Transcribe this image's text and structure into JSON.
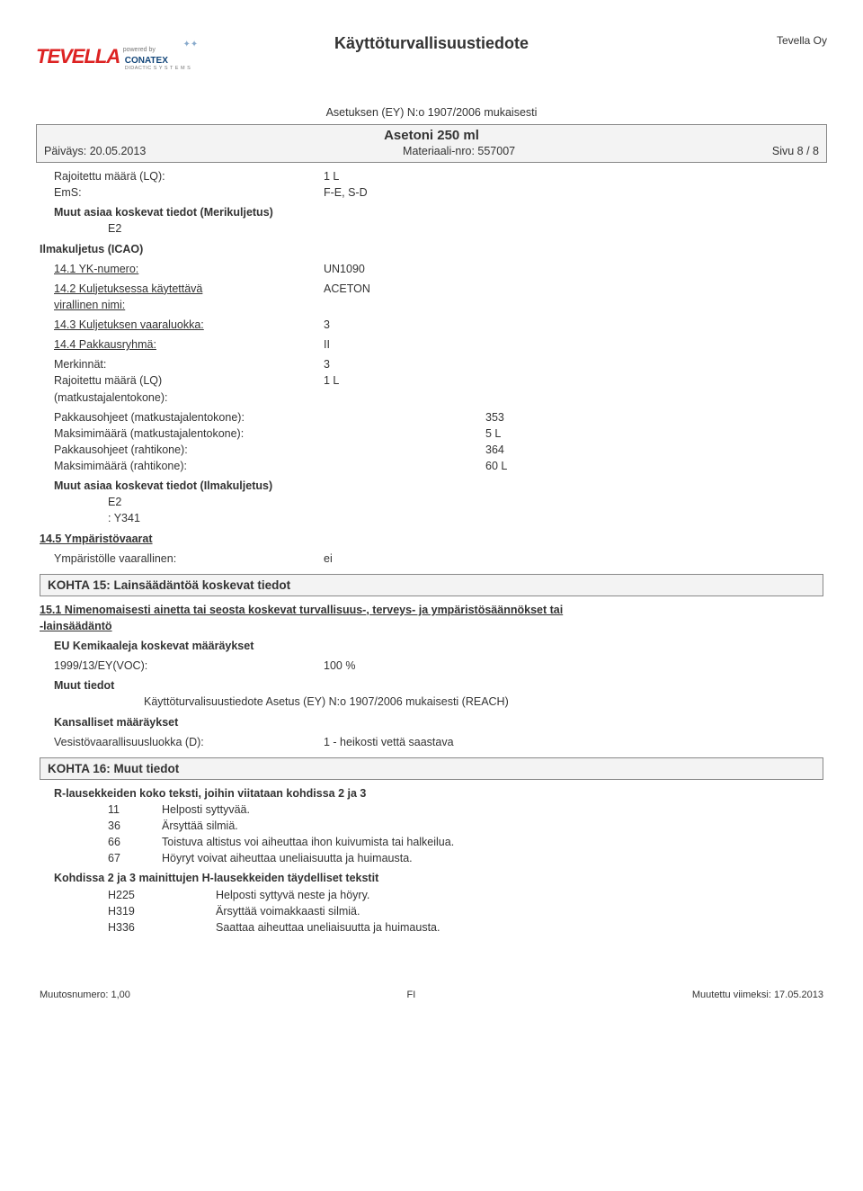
{
  "header": {
    "company_name": "Tevella Oy",
    "logo_text": "TEVELLA",
    "logo_powered": "powered by",
    "logo_conatex": "CONATEX",
    "logo_didactic": "DIDACTIC  S Y S T E M S",
    "doc_title": "Käyttöturvallisuustiedote",
    "doc_subtitle": "Asetuksen (EY) N:o 1907/2006 mukaisesti"
  },
  "product": {
    "title": "Asetoni 250 ml",
    "date_label": "Päiväys: 20.05.2013",
    "material_label": "Materiaali-nro: 557007",
    "page_label": "Sivu 8 / 8"
  },
  "sea": {
    "lq_label": "Rajoitettu määrä (LQ):",
    "lq_val": "1 L",
    "ems_label": "EmS:",
    "ems_val": "F-E, S-D",
    "other_label": "Muut asiaa koskevat tiedot (Merikuljetus)",
    "other_val": "E2"
  },
  "air": {
    "heading": "Ilmakuljetus (ICAO)",
    "un_label": "14.1 YK-numero:",
    "un_val": "UN1090",
    "name_label": "14.2 Kuljetuksessa käytettävä virallinen nimi:",
    "name_val": "ACETON",
    "class_label": "14.3 Kuljetuksen vaaraluokka:",
    "class_val": "3",
    "packgroup_label": "14.4 Pakkausryhmä:",
    "packgroup_val": "II",
    "mark_label": "Merkinnät:",
    "mark_val": "3",
    "lq_label": "Rajoitettu määrä (LQ) (matkustajalentokone):",
    "lq_val": "1 L",
    "pax_instr_label": "Pakkausohjeet (matkustajalentokone):",
    "pax_instr_val": "353",
    "pax_max_label": "Maksimimäärä (matkustajalentokone):",
    "pax_max_val": "5 L",
    "cargo_instr_label": "Pakkausohjeet (rahtikone):",
    "cargo_instr_val": "364",
    "cargo_max_label": "Maksimimäärä (rahtikone):",
    "cargo_max_val": "60 L",
    "other_label": "Muut asiaa koskevat tiedot (Ilmakuljetus)",
    "other_e2": "E2",
    "other_y": ": Y341"
  },
  "env": {
    "heading": "14.5 Ympäristövaarat",
    "label": "Ympäristölle vaarallinen:",
    "val": "ei"
  },
  "kohta15": {
    "heading": "KOHTA 15: Lainsäädäntöä koskevat tiedot",
    "sub_heading": "15.1 Nimenomaisesti ainetta tai seosta koskevat turvallisuus-, terveys- ja ympäristösäännökset tai -lainsäädäntö",
    "eu_heading": "EU Kemikaaleja koskevat määräykset",
    "voc_label": "1999/13/EY(VOC):",
    "voc_val": "100 %",
    "other_heading": "Muut tiedot",
    "other_text": "Käyttöturvalisuustiedote Asetus (EY) N:o 1907/2006 mukaisesti (REACH)",
    "national_heading": "Kansalliset määräykset",
    "water_label": "Vesistövaarallisuusluokka (D):",
    "water_val": "1 - heikosti vettä saastava"
  },
  "kohta16": {
    "heading": "KOHTA 16: Muut tiedot",
    "r_heading": "R-lausekkeiden koko teksti, joihin viitataan kohdissa 2 ja 3",
    "r": [
      {
        "code": "11",
        "text": "Helposti syttyvää."
      },
      {
        "code": "36",
        "text": "Ärsyttää silmiä."
      },
      {
        "code": "66",
        "text": "Toistuva altistus voi aiheuttaa ihon kuivumista tai halkeilua."
      },
      {
        "code": "67",
        "text": "Höyryt voivat aiheuttaa uneliaisuutta ja huimausta."
      }
    ],
    "h_heading": "Kohdissa 2 ja 3 mainittujen H-lausekkeiden täydelliset tekstit",
    "h": [
      {
        "code": "H225",
        "text": "Helposti syttyvä neste ja höyry."
      },
      {
        "code": "H319",
        "text": "Ärsyttää voimakkaasti silmiä."
      },
      {
        "code": "H336",
        "text": "Saattaa aiheuttaa uneliaisuutta ja huimausta."
      }
    ]
  },
  "footer": {
    "rev": "Muutosnumero: 1,00",
    "lang": "FI",
    "modified": "Muutettu viimeksi: 17.05.2013"
  }
}
